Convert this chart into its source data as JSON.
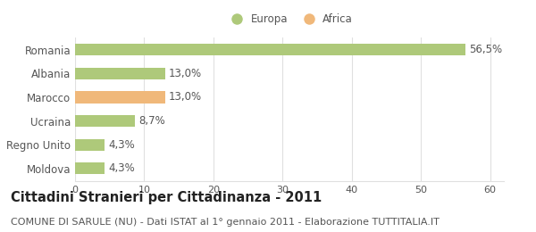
{
  "categories": [
    "Moldova",
    "Regno Unito",
    "Ucraina",
    "Marocco",
    "Albania",
    "Romania"
  ],
  "values": [
    4.3,
    4.3,
    8.7,
    13.0,
    13.0,
    56.5
  ],
  "colors": [
    "#aec97a",
    "#aec97a",
    "#aec97a",
    "#f0b87a",
    "#aec97a",
    "#aec97a"
  ],
  "bar_labels": [
    "4,3%",
    "4,3%",
    "8,7%",
    "13,0%",
    "13,0%",
    "56,5%"
  ],
  "legend_labels": [
    "Europa",
    "Africa"
  ],
  "legend_colors": [
    "#aec97a",
    "#f0b87a"
  ],
  "xlim": [
    0,
    62
  ],
  "xticks": [
    0,
    10,
    20,
    30,
    40,
    50,
    60
  ],
  "title_bold": "Cittadini Stranieri per Cittadinanza - 2011",
  "subtitle": "COMUNE DI SARULE (NU) - Dati ISTAT al 1° gennaio 2011 - Elaborazione TUTTITALIA.IT",
  "background_color": "#ffffff",
  "grid_color": "#e0e0e0",
  "bar_height": 0.5,
  "label_fontsize": 8.5,
  "ytick_fontsize": 8.5,
  "xtick_fontsize": 8.0,
  "title_fontsize": 10.5,
  "subtitle_fontsize": 8.0,
  "text_color": "#555555",
  "title_color": "#222222"
}
